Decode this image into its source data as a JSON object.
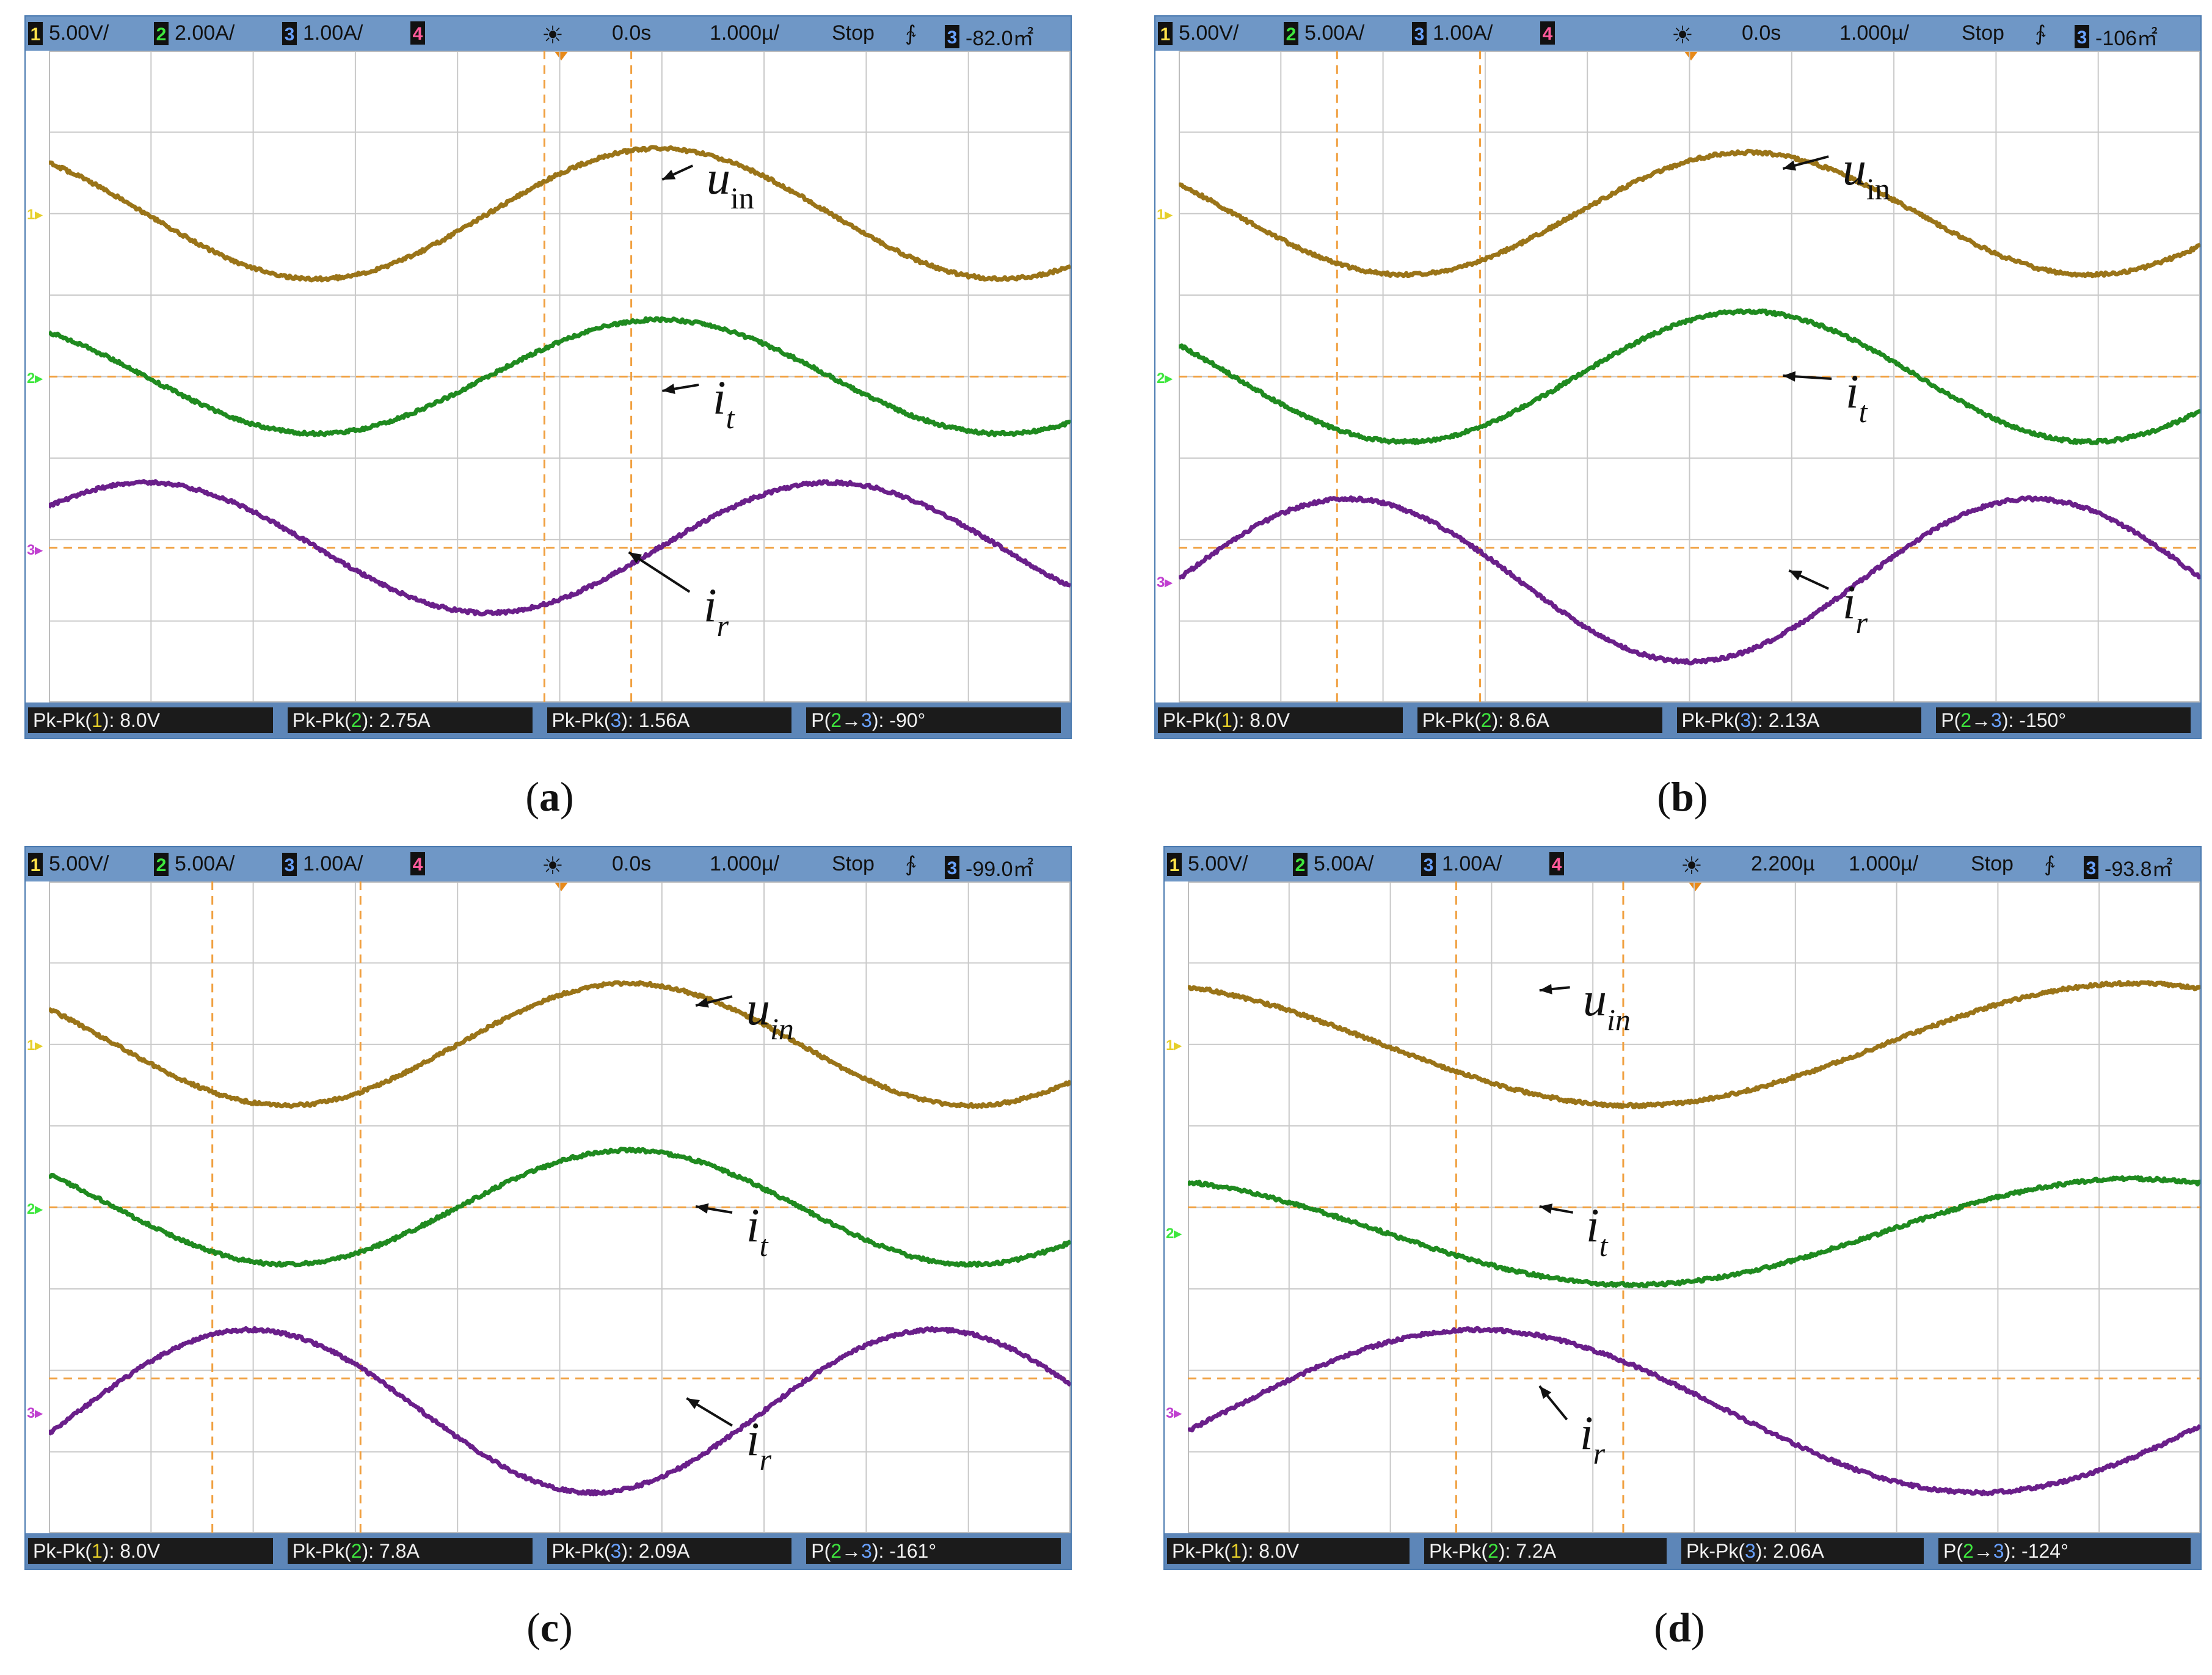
{
  "figure": {
    "panels": [
      {
        "id": "a",
        "caption_letter": "a",
        "topbar": {
          "ch1_num": "1",
          "ch1_scale": "5.00V/",
          "ch2_num": "2",
          "ch2_scale": "2.00A/",
          "ch3_num": "3",
          "ch3_scale": "1.00A/",
          "ch4_num": "4",
          "trigger_icon": "☀",
          "delay": "0.0s",
          "timebase": "1.000µ/",
          "run_state": "Stop",
          "edge_icon": "∱",
          "trig_ch": "3",
          "trig_level": "-82.0㎡"
        },
        "meas": {
          "m1_prefix": "Pk-Pk(",
          "m1_ch": "1",
          "m1_suffix": "): 8.0V",
          "m2_prefix": "Pk-Pk(",
          "m2_ch": "2",
          "m2_suffix": "): 2.75A",
          "m3_prefix": "Pk-Pk(",
          "m3_ch": "3",
          "m3_suffix": "): 1.56A",
          "m4_prefix": "P(",
          "m4_ch_a": "2",
          "m4_arrow": "→",
          "m4_ch_b": "3",
          "m4_suffix": "): -90°"
        },
        "gnd_labels": {
          "ch1": "1▸",
          "ch2": "2▸",
          "ch3": "3▸"
        },
        "anno": {
          "u_main": "u",
          "u_sub": "in",
          "it_main": "i",
          "it_sub": "t",
          "ir_main": "i",
          "ir_sub": "r"
        }
      },
      {
        "id": "b",
        "caption_letter": "b",
        "topbar": {
          "ch1_num": "1",
          "ch1_scale": "5.00V/",
          "ch2_num": "2",
          "ch2_scale": "5.00A/",
          "ch3_num": "3",
          "ch3_scale": "1.00A/",
          "ch4_num": "4",
          "trigger_icon": "☀",
          "delay": "0.0s",
          "timebase": "1.000µ/",
          "run_state": "Stop",
          "edge_icon": "∱",
          "trig_ch": "3",
          "trig_level": "-106㎡"
        },
        "meas": {
          "m1_prefix": "Pk-Pk(",
          "m1_ch": "1",
          "m1_suffix": "): 8.0V",
          "m2_prefix": "Pk-Pk(",
          "m2_ch": "2",
          "m2_suffix": "): 8.6A",
          "m3_prefix": "Pk-Pk(",
          "m3_ch": "3",
          "m3_suffix": "): 2.13A",
          "m4_prefix": "P(",
          "m4_ch_a": "2",
          "m4_arrow": "→",
          "m4_ch_b": "3",
          "m4_suffix": "): -150°"
        },
        "gnd_labels": {
          "ch1": "1▸",
          "ch2": "2▸",
          "ch3": "3▸"
        },
        "anno": {
          "u_main": "u",
          "u_sub": "in",
          "it_main": "i",
          "it_sub": "t",
          "ir_main": "i",
          "ir_sub": "r"
        }
      },
      {
        "id": "c",
        "caption_letter": "c",
        "topbar": {
          "ch1_num": "1",
          "ch1_scale": "5.00V/",
          "ch2_num": "2",
          "ch2_scale": "5.00A/",
          "ch3_num": "3",
          "ch3_scale": "1.00A/",
          "ch4_num": "4",
          "trigger_icon": "☀",
          "delay": "0.0s",
          "timebase": "1.000µ/",
          "run_state": "Stop",
          "edge_icon": "∱",
          "trig_ch": "3",
          "trig_level": "-99.0㎡"
        },
        "meas": {
          "m1_prefix": "Pk-Pk(",
          "m1_ch": "1",
          "m1_suffix": "): 8.0V",
          "m2_prefix": "Pk-Pk(",
          "m2_ch": "2",
          "m2_suffix": "): 7.8A",
          "m3_prefix": "Pk-Pk(",
          "m3_ch": "3",
          "m3_suffix": "): 2.09A",
          "m4_prefix": "P(",
          "m4_ch_a": "2",
          "m4_arrow": "→",
          "m4_ch_b": "3",
          "m4_suffix": "): -161°"
        },
        "gnd_labels": {
          "ch1": "1▸",
          "ch2": "2▸",
          "ch3": "3▸"
        },
        "anno": {
          "u_main": "u",
          "u_sub": "in",
          "it_main": "i",
          "it_sub": "t",
          "ir_main": "i",
          "ir_sub": "r"
        }
      },
      {
        "id": "d",
        "caption_letter": "d",
        "topbar": {
          "ch1_num": "1",
          "ch1_scale": "5.00V/",
          "ch2_num": "2",
          "ch2_scale": "5.00A/",
          "ch3_num": "3",
          "ch3_scale": "1.00A/",
          "ch4_num": "4",
          "trigger_icon": "☀",
          "delay": "2.200µ",
          "timebase": "1.000µ/",
          "run_state": "Stop",
          "edge_icon": "∱",
          "trig_ch": "3",
          "trig_level": "-93.8㎡"
        },
        "meas": {
          "m1_prefix": "Pk-Pk(",
          "m1_ch": "1",
          "m1_suffix": "): 8.0V",
          "m2_prefix": "Pk-Pk(",
          "m2_ch": "2",
          "m2_suffix": "): 7.2A",
          "m3_prefix": "Pk-Pk(",
          "m3_ch": "3",
          "m3_suffix": "): 2.06A",
          "m4_prefix": "P(",
          "m4_ch_a": "2",
          "m4_arrow": "→",
          "m4_ch_b": "3",
          "m4_suffix": "): -124°"
        },
        "gnd_labels": {
          "ch1": "1▸",
          "ch2": "2▸",
          "ch3": "3▸"
        },
        "anno": {
          "u_main": "u",
          "u_sub": "in",
          "it_main": "i",
          "it_sub": "t",
          "ir_main": "i",
          "ir_sub": "r"
        }
      }
    ]
  },
  "colors": {
    "uin": "#9a7418",
    "it": "#1f8a1f",
    "ir": "#6a1f8a",
    "grid": "#c9c9c9",
    "cursor": "#f0a040",
    "ch1": "#e6cf2a",
    "ch2": "#3ee63e",
    "ch3": "#c040d0"
  },
  "chart_data": [
    {
      "type": "line",
      "panel": "a",
      "title": "",
      "x_unit": "div",
      "xlim": [
        0,
        10
      ],
      "ylim": [
        -4,
        4
      ],
      "grid": true,
      "series": [
        {
          "name": "u_in",
          "channel": 1,
          "offset_div": 2.0,
          "amplitude_div": 0.8,
          "period_div": 6.7,
          "phase_deg": 129
        },
        {
          "name": "i_t",
          "channel": 2,
          "offset_div": 0.0,
          "amplitude_div": 0.7,
          "period_div": 6.7,
          "phase_deg": 129
        },
        {
          "name": "i_r",
          "channel": 3,
          "offset_div": -2.1,
          "amplitude_div": 0.8,
          "period_div": 6.7,
          "phase_deg": 39
        }
      ],
      "cursors_x_div": [
        4.85,
        5.7
      ],
      "cursors_y_div": [
        0.0,
        -2.1
      ]
    },
    {
      "type": "line",
      "panel": "b",
      "title": "",
      "x_unit": "div",
      "xlim": [
        0,
        10
      ],
      "ylim": [
        -4,
        4
      ],
      "grid": true,
      "series": [
        {
          "name": "u_in",
          "channel": 1,
          "offset_div": 2.0,
          "amplitude_div": 0.75,
          "period_div": 6.7,
          "phase_deg": 151
        },
        {
          "name": "i_t",
          "channel": 2,
          "offset_div": 0.0,
          "amplitude_div": 0.8,
          "period_div": 6.7,
          "phase_deg": 151
        },
        {
          "name": "i_r",
          "channel": 3,
          "offset_div": -2.5,
          "amplitude_div": 1.0,
          "period_div": 6.7,
          "phase_deg": 1
        }
      ],
      "cursors_x_div": [
        1.55,
        2.95
      ],
      "cursors_y_div": [
        0.0,
        -2.1
      ]
    },
    {
      "type": "line",
      "panel": "c",
      "title": "",
      "x_unit": "div",
      "xlim": [
        0,
        10
      ],
      "ylim": [
        -4,
        4
      ],
      "grid": true,
      "series": [
        {
          "name": "u_in",
          "channel": 1,
          "offset_div": 2.0,
          "amplitude_div": 0.75,
          "period_div": 6.7,
          "phase_deg": 145
        },
        {
          "name": "i_t",
          "channel": 2,
          "offset_div": 0.0,
          "amplitude_div": 0.7,
          "period_div": 6.7,
          "phase_deg": 145
        },
        {
          "name": "i_r",
          "channel": 3,
          "offset_div": -2.5,
          "amplitude_div": 1.0,
          "period_div": 6.7,
          "phase_deg": -16
        }
      ],
      "cursors_x_div": [
        1.6,
        3.05
      ],
      "cursors_y_div": [
        0.0,
        -2.1
      ]
    },
    {
      "type": "line",
      "panel": "d",
      "title": "",
      "x_unit": "div",
      "xlim": [
        0,
        10
      ],
      "ylim": [
        -4,
        4
      ],
      "grid": true,
      "series": [
        {
          "name": "u_in",
          "channel": 1,
          "offset_div": 2.0,
          "amplitude_div": 0.75,
          "period_div": 9.9,
          "phase_deg": 110
        },
        {
          "name": "i_t",
          "channel": 2,
          "offset_div": -0.3,
          "amplitude_div": 0.65,
          "period_div": 9.9,
          "phase_deg": 110
        },
        {
          "name": "i_r",
          "channel": 3,
          "offset_div": -2.5,
          "amplitude_div": 1.0,
          "period_div": 9.9,
          "phase_deg": -14
        }
      ],
      "cursors_x_div": [
        2.65,
        4.3
      ],
      "cursors_y_div": [
        0.0,
        -2.1
      ]
    }
  ]
}
